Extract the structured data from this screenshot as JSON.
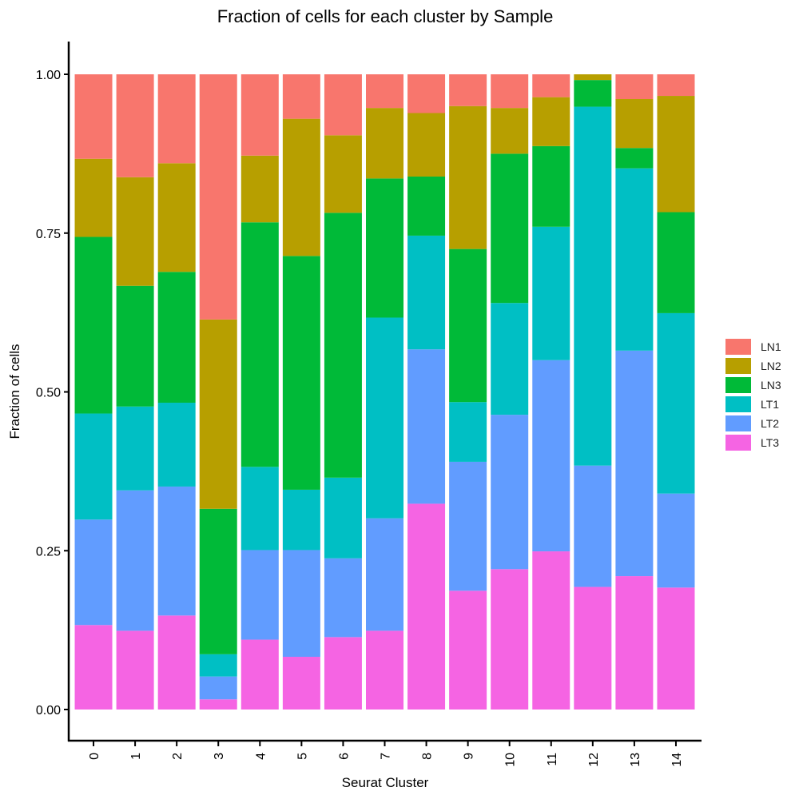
{
  "chart_data": {
    "type": "bar",
    "stacked": true,
    "title": "Fraction of cells for each cluster by Sample",
    "xlabel": "Seurat Cluster",
    "ylabel": "Fraction of cells",
    "ylim": [
      0,
      1
    ],
    "yticks": [
      "0.00",
      "0.25",
      "0.50",
      "0.75",
      "1.00"
    ],
    "categories": [
      "0",
      "1",
      "2",
      "3",
      "4",
      "5",
      "6",
      "7",
      "8",
      "9",
      "10",
      "11",
      "12",
      "13",
      "14"
    ],
    "legend_position": "right",
    "grid": false,
    "series": [
      {
        "name": "LT3",
        "color": "#F564E3",
        "values": [
          0.133,
          0.124,
          0.148,
          0.016,
          0.11,
          0.083,
          0.114,
          0.124,
          0.324,
          0.187,
          0.221,
          0.249,
          0.193,
          0.21,
          0.192
        ]
      },
      {
        "name": "LT2",
        "color": "#619CFF",
        "values": [
          0.166,
          0.221,
          0.203,
          0.036,
          0.141,
          0.168,
          0.124,
          0.177,
          0.243,
          0.203,
          0.243,
          0.301,
          0.191,
          0.355,
          0.148
        ]
      },
      {
        "name": "LT1",
        "color": "#00BFC4",
        "values": [
          0.167,
          0.132,
          0.132,
          0.035,
          0.131,
          0.095,
          0.127,
          0.316,
          0.179,
          0.094,
          0.176,
          0.21,
          0.565,
          0.287,
          0.284
        ]
      },
      {
        "name": "LN3",
        "color": "#00BA38",
        "values": [
          0.278,
          0.19,
          0.206,
          0.229,
          0.385,
          0.368,
          0.417,
          0.219,
          0.093,
          0.241,
          0.235,
          0.127,
          0.042,
          0.032,
          0.159
        ]
      },
      {
        "name": "LN2",
        "color": "#B79F00",
        "values": [
          0.123,
          0.171,
          0.171,
          0.298,
          0.105,
          0.216,
          0.122,
          0.111,
          0.1,
          0.225,
          0.072,
          0.077,
          0.009,
          0.077,
          0.183
        ]
      },
      {
        "name": "LN1",
        "color": "#F8766D",
        "values": [
          0.133,
          0.162,
          0.14,
          0.386,
          0.128,
          0.07,
          0.096,
          0.053,
          0.061,
          0.05,
          0.053,
          0.036,
          0.0,
          0.039,
          0.034
        ]
      }
    ],
    "legend_order": [
      "LN1",
      "LN2",
      "LN3",
      "LT1",
      "LT2",
      "LT3"
    ]
  }
}
